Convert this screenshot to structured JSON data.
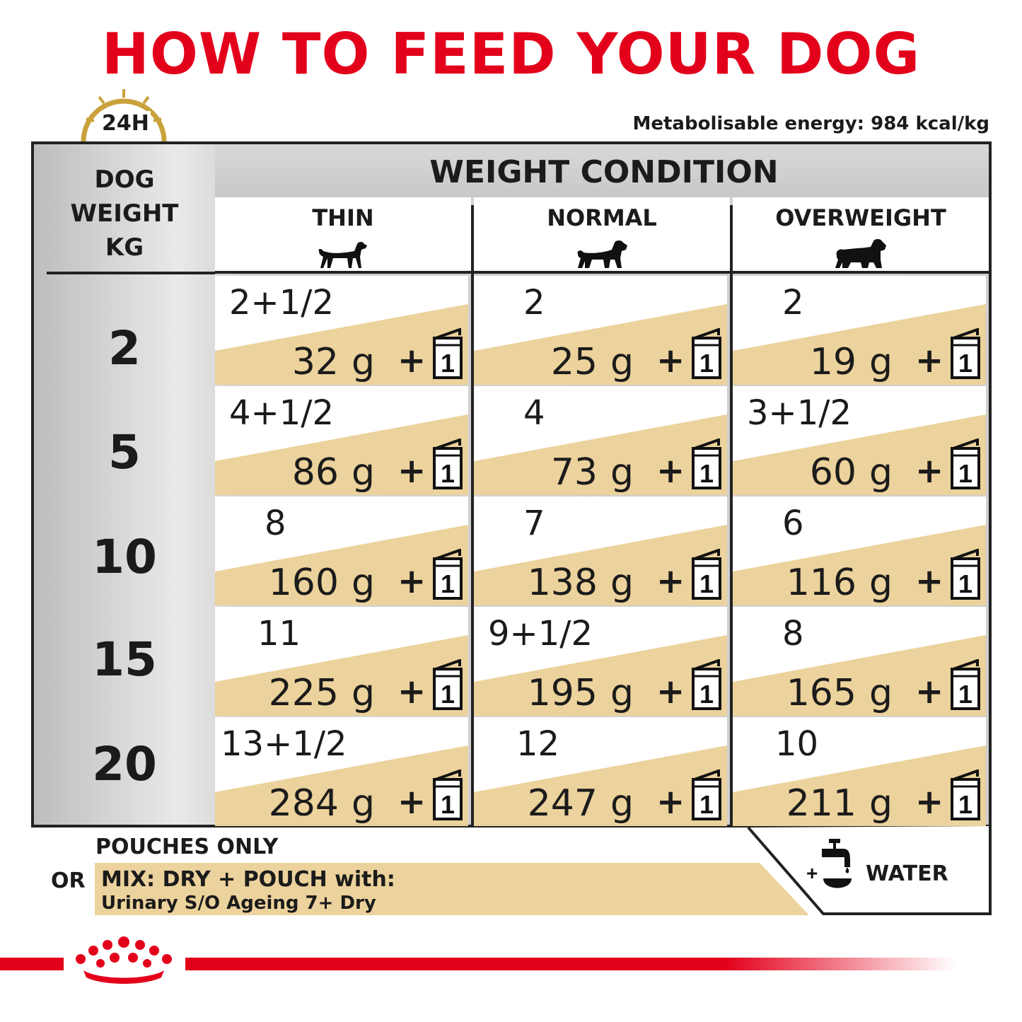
{
  "title": "HOW TO FEED YOUR DOG",
  "badge": "24H",
  "energy": "Metabolisable energy: 984 kcal/kg",
  "table": {
    "weight_header": [
      "DOG",
      "WEIGHT",
      "KG"
    ],
    "condition_header": "WEIGHT CONDITION",
    "columns": [
      "THIN",
      "NORMAL",
      "OVERWEIGHT"
    ],
    "unit": "g",
    "plus": "+",
    "pouch_count": "1",
    "rows": [
      {
        "kg": "2",
        "cells": [
          {
            "dry": "2+1/2",
            "grams": "32"
          },
          {
            "dry": "2",
            "grams": "25"
          },
          {
            "dry": "2",
            "grams": "19"
          }
        ]
      },
      {
        "kg": "5",
        "cells": [
          {
            "dry": "4+1/2",
            "grams": "86"
          },
          {
            "dry": "4",
            "grams": "73"
          },
          {
            "dry": "3+1/2",
            "grams": "60"
          }
        ]
      },
      {
        "kg": "10",
        "cells": [
          {
            "dry": "8",
            "grams": "160"
          },
          {
            "dry": "7",
            "grams": "138"
          },
          {
            "dry": "6",
            "grams": "116"
          }
        ]
      },
      {
        "kg": "15",
        "cells": [
          {
            "dry": "11",
            "grams": "225"
          },
          {
            "dry": "9+1/2",
            "grams": "195"
          },
          {
            "dry": "8",
            "grams": "165"
          }
        ]
      },
      {
        "kg": "20",
        "cells": [
          {
            "dry": "13+1/2",
            "grams": "284"
          },
          {
            "dry": "12",
            "grams": "247"
          },
          {
            "dry": "10",
            "grams": "211"
          }
        ]
      }
    ]
  },
  "footer": {
    "pouches_only": "POUCHES ONLY",
    "or": "OR",
    "mix_line1": "MIX: DRY + POUCH with:",
    "mix_line2": "Urinary S/O Ageing 7+ Dry",
    "water_plus": "+",
    "water": "WATER"
  },
  "colors": {
    "brand_red": "#e3001b",
    "band_tan": "#ecd29c",
    "badge_gold": "#c9a23c",
    "rule": "#222222"
  },
  "icons": [
    "clock-icon",
    "dog-thin-icon",
    "dog-normal-icon",
    "dog-overweight-icon",
    "pouch-icon",
    "water-tap-icon",
    "crown-logo-icon"
  ]
}
